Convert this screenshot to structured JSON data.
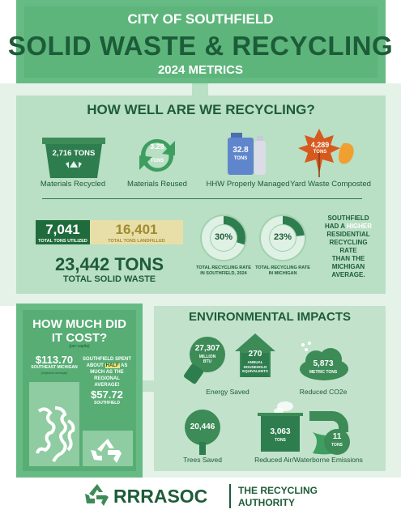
{
  "header": {
    "city": "CITY OF SOUTHFIELD",
    "title": "SOLID WASTE & RECYCLING",
    "subtitle": "2024 METRICS"
  },
  "recycling": {
    "heading": "HOW WELL ARE WE RECYCLING?",
    "items": [
      {
        "value": "2,716 TONS",
        "label": "Materials Recycled",
        "icon": "recycling-bin-icon"
      },
      {
        "value": "3.29",
        "unit": "TONS",
        "label": "Materials Reused",
        "icon": "reuse-arrows-icon"
      },
      {
        "value": "32.8",
        "unit": "TONS",
        "label": "HHW Properly Managed",
        "icon": "hazardous-containers-icon"
      },
      {
        "value": "4,289",
        "unit": "TONS",
        "label": "Yard Waste Composted",
        "icon": "leaves-icon"
      }
    ],
    "utilized_value": "7,041",
    "utilized_label": "TOTAL TONS UTILIZED",
    "landfilled_value": "16,401",
    "landfilled_label": "TOTAL TONS LANDFILLED",
    "total_value": "23,442 TONS",
    "total_label": "TOTAL SOLID WASTE",
    "rate_southfield": {
      "value": "30%",
      "fraction": 0.3,
      "label_line1": "TOTAL RECYCLING RATE",
      "label_line2": "IN SOUTHFIELD, 2024"
    },
    "rate_michigan": {
      "value": "23%",
      "fraction": 0.23,
      "label_line1": "TOTAL RECYCLING RATE",
      "label_line2": "IN MICHIGAN"
    },
    "comparison": {
      "line1": "SOUTHFIELD",
      "line2a": "HAD A ",
      "line2b": "HIGHER",
      "line3": "RESIDENTIAL",
      "line4": "RECYCLING RATE",
      "line5": "THAN THE",
      "line6": "MICHIGAN",
      "line7": "AVERAGE."
    }
  },
  "cost": {
    "title_line1": "HOW MUCH DID",
    "title_line2": "IT COST?",
    "per_capita": "(per capita)",
    "southeast_value": "$113.70",
    "southeast_label": "SOUTHEAST MICHIGAN",
    "southeast_sub": "(regional average)",
    "half_line1": "SOUTHFIELD SPENT",
    "half_line2a": "ABOUT ",
    "half_line2b": "HALF",
    "half_line2c": " AS",
    "half_line3": "MUCH AS THE",
    "half_line4": "REGIONAL",
    "half_line5": "AVERAGE!",
    "southfield_value": "$57.72",
    "southfield_label": "SOUTHFIELD"
  },
  "environment": {
    "heading": "ENVIRONMENTAL IMPACTS",
    "energy": {
      "value": "27,307",
      "unit": "MILLION",
      "unit2": "BTU",
      "label": "Energy Saved",
      "icon": "lightbulb-icon"
    },
    "households": {
      "value": "270",
      "unit": "ANNUAL",
      "unit2": "HOUSEHOLD",
      "unit3": "EQUIVALENTS",
      "icon": "house-icon"
    },
    "co2": {
      "value": "5,873",
      "unit": "METRIC TONS",
      "label": "Reduced CO2e",
      "icon": "cloud-icon"
    },
    "trees": {
      "value": "20,446",
      "label": "Trees Saved",
      "icon": "tree-icon"
    },
    "air": {
      "value": "3,063",
      "unit": "TONS",
      "icon": "factory-icon"
    },
    "water": {
      "value": "11",
      "unit": "TONS",
      "icon": "water-pipe-icon"
    },
    "emissions_label": "Reduced Air/Waterborne Emissions"
  },
  "footer": {
    "logo": "RRRASOC",
    "authority_line1": "THE RECYCLING",
    "authority_line2": "AUTHORITY",
    "icon": "recycle-logo-icon"
  },
  "colors": {
    "dark_green": "#1d5c38",
    "mid_green": "#5db57b",
    "light_green": "#b9dfc4",
    "pale_green": "#e4f2e8",
    "landfill_tan": "#e8dfa8",
    "leaf_orange": "#e07a20"
  }
}
